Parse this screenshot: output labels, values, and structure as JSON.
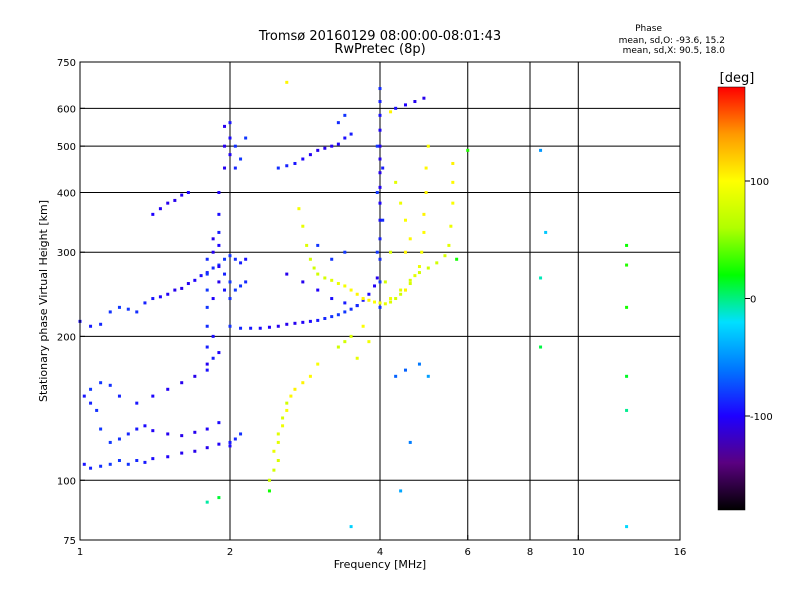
{
  "title_line1": "Tromsø 20160129 08:00:00-08:01:43",
  "title_line2": "RwPretec (8p)",
  "phase_box": {
    "title": "Phase",
    "line_o": "mean, sd,O: -93.6, 15.2",
    "line_x": "mean, sd,X:  90.5, 18.0"
  },
  "colorbar": {
    "unit": "[deg]",
    "ticks": [
      {
        "value": 100,
        "label": "100"
      },
      {
        "value": 0,
        "label": "0"
      },
      {
        "value": -100,
        "label": "-100"
      }
    ],
    "range": [
      -180,
      180
    ],
    "colors": [
      "#000000",
      "#5a0080",
      "#1e00ff",
      "#0077ff",
      "#00e0ff",
      "#00ff00",
      "#b0ff00",
      "#ffff00",
      "#ff9900",
      "#ff0000"
    ]
  },
  "chart_data": {
    "type": "scatter",
    "title": "Tromsø 20160129 08:00:00-08:01:43",
    "subtitle": "RwPretec (8p)",
    "xlabel": "Frequency [MHz]",
    "ylabel": "Stationary phase Virtual Height [km]",
    "x_scale": "log",
    "y_scale": "log",
    "xlim": [
      1,
      16
    ],
    "ylim": [
      75,
      750
    ],
    "x_ticks": [
      1,
      2,
      4,
      6,
      8,
      10,
      16
    ],
    "y_ticks": [
      75,
      100,
      200,
      300,
      400,
      500,
      600,
      750
    ],
    "x_gridlines": [
      2,
      4,
      6,
      8,
      10
    ],
    "y_gridlines": [
      100,
      200,
      300,
      400,
      500,
      600
    ],
    "color_by": "phase_deg",
    "series": [
      {
        "name": "O",
        "phase_mean": -93.6,
        "phase_sd": 15.2,
        "points": [
          [
            1.02,
            108
          ],
          [
            1.05,
            106
          ],
          [
            1.1,
            107
          ],
          [
            1.15,
            108
          ],
          [
            1.2,
            110
          ],
          [
            1.25,
            108
          ],
          [
            1.3,
            110
          ],
          [
            1.35,
            109
          ],
          [
            1.4,
            111
          ],
          [
            1.5,
            112
          ],
          [
            1.6,
            114
          ],
          [
            1.7,
            115
          ],
          [
            1.8,
            117
          ],
          [
            1.9,
            119
          ],
          [
            2.0,
            118
          ],
          [
            1.02,
            150
          ],
          [
            1.05,
            145
          ],
          [
            1.08,
            140
          ],
          [
            1.1,
            128
          ],
          [
            1.15,
            120
          ],
          [
            1.2,
            122
          ],
          [
            1.25,
            125
          ],
          [
            1.3,
            128
          ],
          [
            1.35,
            130
          ],
          [
            1.4,
            127
          ],
          [
            1.5,
            125
          ],
          [
            1.6,
            124
          ],
          [
            1.7,
            126
          ],
          [
            1.8,
            128
          ],
          [
            1.9,
            132
          ],
          [
            2.0,
            120
          ],
          [
            2.05,
            122
          ],
          [
            2.1,
            125
          ],
          [
            1.05,
            155
          ],
          [
            1.1,
            160
          ],
          [
            1.15,
            158
          ],
          [
            1.2,
            150
          ],
          [
            1.3,
            145
          ],
          [
            1.4,
            150
          ],
          [
            1.5,
            155
          ],
          [
            1.6,
            160
          ],
          [
            1.7,
            165
          ],
          [
            1.8,
            175
          ],
          [
            1.9,
            185
          ],
          [
            1.0,
            215
          ],
          [
            1.05,
            210
          ],
          [
            1.1,
            212
          ],
          [
            1.15,
            225
          ],
          [
            1.2,
            230
          ],
          [
            1.25,
            228
          ],
          [
            1.3,
            225
          ],
          [
            1.35,
            235
          ],
          [
            1.4,
            240
          ],
          [
            1.45,
            242
          ],
          [
            1.5,
            245
          ],
          [
            1.55,
            250
          ],
          [
            1.6,
            252
          ],
          [
            1.65,
            258
          ],
          [
            1.7,
            262
          ],
          [
            1.75,
            268
          ],
          [
            1.8,
            272
          ],
          [
            1.85,
            278
          ],
          [
            1.9,
            282
          ],
          [
            1.95,
            290
          ],
          [
            2.0,
            295
          ],
          [
            2.05,
            290
          ],
          [
            2.1,
            285
          ],
          [
            2.15,
            290
          ],
          [
            1.4,
            360
          ],
          [
            1.45,
            370
          ],
          [
            1.5,
            380
          ],
          [
            1.55,
            385
          ],
          [
            1.6,
            395
          ],
          [
            1.65,
            400
          ],
          [
            1.8,
            170
          ],
          [
            1.8,
            190
          ],
          [
            1.8,
            210
          ],
          [
            1.8,
            230
          ],
          [
            1.8,
            250
          ],
          [
            1.8,
            270
          ],
          [
            1.8,
            290
          ],
          [
            1.85,
            180
          ],
          [
            1.85,
            200
          ],
          [
            1.85,
            240
          ],
          [
            1.85,
            300
          ],
          [
            1.85,
            320
          ],
          [
            1.9,
            260
          ],
          [
            1.9,
            280
          ],
          [
            1.9,
            310
          ],
          [
            1.95,
            250
          ],
          [
            1.95,
            270
          ],
          [
            2.0,
            240
          ],
          [
            2.0,
            260
          ],
          [
            2.05,
            250
          ],
          [
            2.1,
            255
          ],
          [
            2.15,
            260
          ],
          [
            1.9,
            330
          ],
          [
            1.9,
            360
          ],
          [
            1.9,
            400
          ],
          [
            1.95,
            450
          ],
          [
            1.95,
            500
          ],
          [
            1.95,
            550
          ],
          [
            2.0,
            480
          ],
          [
            2.0,
            520
          ],
          [
            2.0,
            560
          ],
          [
            2.05,
            450
          ],
          [
            2.05,
            500
          ],
          [
            2.1,
            470
          ],
          [
            2.15,
            520
          ],
          [
            2.0,
            210
          ],
          [
            2.1,
            208
          ],
          [
            2.2,
            208
          ],
          [
            2.3,
            208
          ],
          [
            2.4,
            209
          ],
          [
            2.5,
            210
          ],
          [
            2.6,
            212
          ],
          [
            2.7,
            213
          ],
          [
            2.8,
            214
          ],
          [
            2.9,
            215
          ],
          [
            3.0,
            216
          ],
          [
            3.1,
            218
          ],
          [
            3.2,
            220
          ],
          [
            3.3,
            222
          ],
          [
            3.4,
            225
          ],
          [
            3.5,
            228
          ],
          [
            3.6,
            232
          ],
          [
            3.7,
            238
          ],
          [
            3.8,
            245
          ],
          [
            3.9,
            255
          ],
          [
            3.95,
            265
          ],
          [
            2.6,
            270
          ],
          [
            2.8,
            260
          ],
          [
            3.0,
            250
          ],
          [
            3.2,
            240
          ],
          [
            3.4,
            235
          ],
          [
            3.6,
            232
          ],
          [
            3.2,
            290
          ],
          [
            3.4,
            300
          ],
          [
            3.0,
            310
          ],
          [
            2.5,
            450
          ],
          [
            2.6,
            455
          ],
          [
            2.7,
            460
          ],
          [
            2.8,
            470
          ],
          [
            2.9,
            480
          ],
          [
            3.0,
            490
          ],
          [
            3.1,
            495
          ],
          [
            3.2,
            500
          ],
          [
            3.3,
            505
          ],
          [
            3.4,
            520
          ],
          [
            3.5,
            530
          ],
          [
            3.3,
            560
          ],
          [
            3.4,
            580
          ],
          [
            4.0,
            230
          ],
          [
            4.0,
            260
          ],
          [
            4.0,
            290
          ],
          [
            4.0,
            320
          ],
          [
            4.0,
            350
          ],
          [
            4.0,
            380
          ],
          [
            4.0,
            410
          ],
          [
            4.0,
            440
          ],
          [
            4.0,
            470
          ],
          [
            4.0,
            500
          ],
          [
            4.0,
            540
          ],
          [
            4.0,
            580
          ],
          [
            4.0,
            620
          ],
          [
            4.0,
            660
          ],
          [
            3.95,
            300
          ],
          [
            3.95,
            400
          ],
          [
            3.95,
            500
          ],
          [
            4.05,
            350
          ],
          [
            4.05,
            450
          ],
          [
            4.3,
            600
          ],
          [
            4.5,
            610
          ],
          [
            4.7,
            620
          ],
          [
            4.9,
            630
          ]
        ]
      },
      {
        "name": "X",
        "phase_mean": 90.5,
        "phase_sd": 18.0,
        "points": [
          [
            2.75,
            370
          ],
          [
            2.8,
            340
          ],
          [
            2.85,
            310
          ],
          [
            2.9,
            290
          ],
          [
            2.95,
            278
          ],
          [
            3.0,
            270
          ],
          [
            3.1,
            265
          ],
          [
            3.2,
            262
          ],
          [
            3.3,
            258
          ],
          [
            3.4,
            255
          ],
          [
            3.5,
            250
          ],
          [
            3.6,
            245
          ],
          [
            3.7,
            240
          ],
          [
            3.8,
            238
          ],
          [
            3.9,
            236
          ],
          [
            4.0,
            235
          ],
          [
            4.1,
            234
          ],
          [
            4.2,
            236
          ],
          [
            4.3,
            240
          ],
          [
            4.4,
            245
          ],
          [
            4.5,
            250
          ],
          [
            4.6,
            258
          ],
          [
            4.7,
            268
          ],
          [
            4.8,
            280
          ],
          [
            4.85,
            300
          ],
          [
            4.9,
            330
          ],
          [
            4.9,
            360
          ],
          [
            4.95,
            400
          ],
          [
            4.95,
            450
          ],
          [
            5.0,
            500
          ],
          [
            4.2,
            240
          ],
          [
            4.4,
            250
          ],
          [
            4.6,
            262
          ],
          [
            4.8,
            272
          ],
          [
            5.0,
            278
          ],
          [
            5.2,
            285
          ],
          [
            5.4,
            295
          ],
          [
            5.5,
            310
          ],
          [
            5.55,
            340
          ],
          [
            5.6,
            380
          ],
          [
            5.6,
            420
          ],
          [
            5.6,
            460
          ],
          [
            4.5,
            300
          ],
          [
            4.6,
            320
          ],
          [
            4.5,
            350
          ],
          [
            4.4,
            380
          ],
          [
            4.3,
            420
          ],
          [
            4.2,
            300
          ],
          [
            4.1,
            260
          ],
          [
            2.4,
            100
          ],
          [
            2.45,
            105
          ],
          [
            2.5,
            110
          ],
          [
            2.5,
            120
          ],
          [
            2.55,
            130
          ],
          [
            2.6,
            140
          ],
          [
            2.65,
            150
          ],
          [
            2.7,
            155
          ],
          [
            2.8,
            160
          ],
          [
            2.9,
            165
          ],
          [
            3.0,
            175
          ],
          [
            2.45,
            115
          ],
          [
            2.5,
            125
          ],
          [
            2.55,
            135
          ],
          [
            2.6,
            145
          ],
          [
            3.3,
            190
          ],
          [
            3.4,
            195
          ],
          [
            3.5,
            200
          ],
          [
            3.6,
            180
          ],
          [
            3.8,
            195
          ],
          [
            3.7,
            210
          ],
          [
            2.6,
            680
          ],
          [
            4.5,
            250
          ],
          [
            4.2,
            590
          ]
        ]
      },
      {
        "name": "scattered",
        "points": [
          [
            8.4,
            490
          ],
          [
            8.6,
            330
          ],
          [
            8.4,
            265
          ],
          [
            8.4,
            190
          ],
          [
            12.5,
            310
          ],
          [
            12.5,
            282
          ],
          [
            12.5,
            230
          ],
          [
            12.5,
            165
          ],
          [
            12.5,
            140
          ],
          [
            12.5,
            80
          ],
          [
            4.4,
            95
          ],
          [
            4.6,
            120
          ],
          [
            4.3,
            165
          ],
          [
            4.5,
            170
          ],
          [
            4.8,
            175
          ],
          [
            5.0,
            165
          ],
          [
            3.5,
            80
          ],
          [
            1.8,
            90
          ],
          [
            1.9,
            92
          ],
          [
            2.4,
            95
          ],
          [
            6.0,
            490
          ],
          [
            5.7,
            290
          ]
        ]
      }
    ]
  }
}
